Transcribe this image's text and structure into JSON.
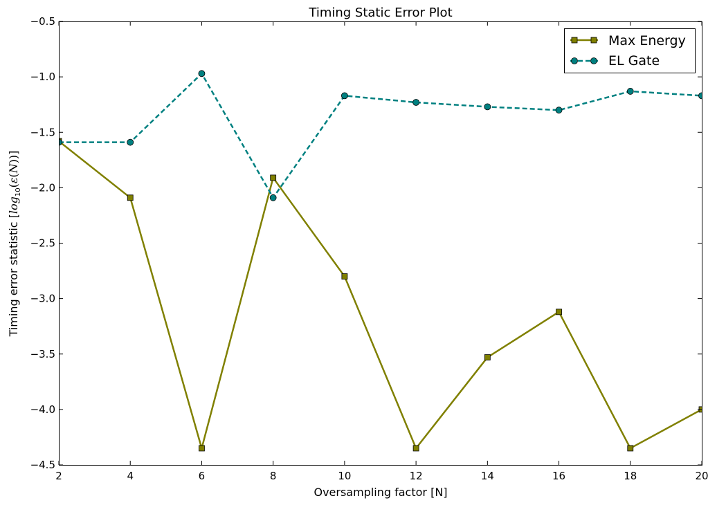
{
  "chart_data": {
    "type": "line",
    "title": "Timing Static Error Plot",
    "xlabel": "Oversampling factor [N]",
    "ylabel": "Timing error statistic [log10(ε(N))]",
    "xlim": [
      2,
      20
    ],
    "ylim": [
      -4.5,
      -0.5
    ],
    "xticks": [
      2,
      4,
      6,
      8,
      10,
      12,
      14,
      16,
      18,
      20
    ],
    "yticks": [
      -0.5,
      -1.0,
      -1.5,
      -2.0,
      -2.5,
      -3.0,
      -3.5,
      -4.0,
      -4.5
    ],
    "xtick_labels": [
      "2",
      "4",
      "6",
      "8",
      "10",
      "12",
      "14",
      "16",
      "18",
      "20"
    ],
    "ytick_labels": [
      "−0.5",
      "−1.0",
      "−1.5",
      "−2.0",
      "−2.5",
      "−3.0",
      "−3.5",
      "−4.0",
      "−4.5"
    ],
    "grid": false,
    "legend_position": "top-right",
    "x": [
      2,
      4,
      6,
      8,
      10,
      12,
      14,
      16,
      18,
      20
    ],
    "series": [
      {
        "name": "Max Energy",
        "values": [
          -1.58,
          -2.09,
          -4.35,
          -1.91,
          -2.8,
          -4.35,
          -3.53,
          -3.12,
          -4.35,
          -4.0
        ],
        "color": "#808000",
        "line_style": "solid",
        "marker": "square"
      },
      {
        "name": "EL Gate",
        "values": [
          -1.59,
          -1.59,
          -0.97,
          -2.09,
          -1.17,
          -1.23,
          -1.27,
          -1.3,
          -1.13,
          -1.17
        ],
        "color": "#008080",
        "line_style": "dashed",
        "marker": "circle"
      }
    ]
  }
}
